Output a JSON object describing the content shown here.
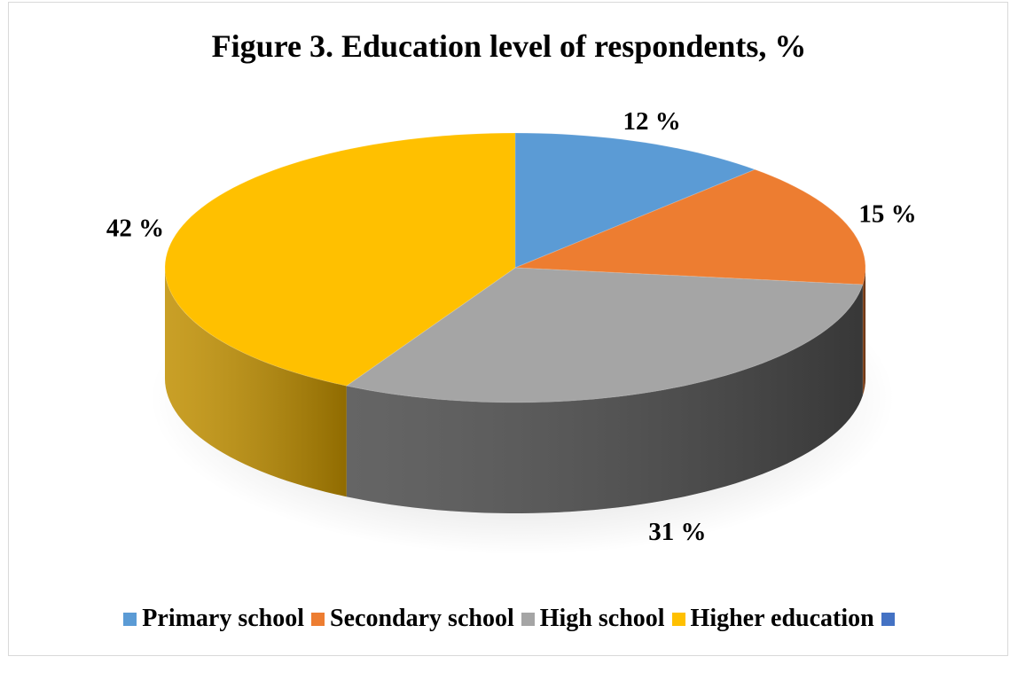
{
  "chart_data": {
    "type": "pie",
    "title": "Figure 3. Education level of respondents, %",
    "categories": [
      "Primary school",
      "Secondary school",
      "High school",
      "Higher education"
    ],
    "values": [
      12,
      15,
      31,
      42
    ],
    "data_labels": [
      "12 %",
      "15 %",
      "31 %",
      "42 %"
    ],
    "colors": [
      "#5b9bd5",
      "#ed7d31",
      "#a5a5a5",
      "#ffc000"
    ],
    "side_colors": [
      "#2e6aa8",
      "#7a3306",
      "#4a4a4a",
      "#c08f00"
    ],
    "legend": {
      "placement": "bottom",
      "items": [
        {
          "label": "Primary school",
          "color": "#5b9bd5"
        },
        {
          "label": "Secondary school",
          "color": "#ed7d31"
        },
        {
          "label": "High school",
          "color": "#a5a5a5"
        },
        {
          "label": "Higher education",
          "color": "#ffc000"
        },
        {
          "label": "",
          "color": "#4472c4"
        }
      ]
    }
  }
}
